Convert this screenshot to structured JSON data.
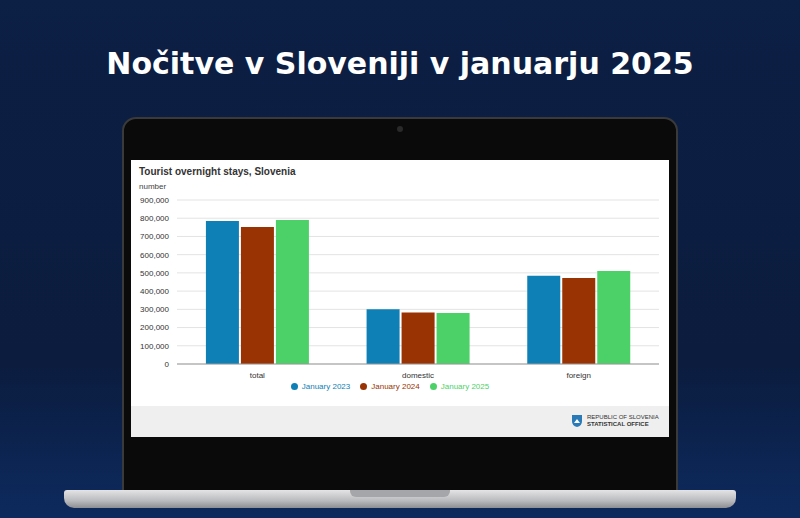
{
  "heading": "Nočitve v Sloveniji v januarju 2025",
  "chart_data": {
    "type": "bar",
    "title": "Tourist overnight stays, Slovenia",
    "ylabel": "number",
    "categories": [
      "total",
      "domestic",
      "foreign"
    ],
    "series": [
      {
        "name": "January 2023",
        "color": "#0e80b5",
        "values": [
          785000,
          300000,
          484000
        ]
      },
      {
        "name": "January 2024",
        "color": "#9a3303",
        "values": [
          752000,
          282000,
          472000
        ]
      },
      {
        "name": "January 2025",
        "color": "#4cd168",
        "values": [
          790000,
          280000,
          510000
        ]
      }
    ],
    "ylim": [
      0,
      900000
    ],
    "yticks": [
      0,
      {
        "value": 100000,
        "label": "100,000"
      },
      {
        "value": 200000,
        "label": "200,000"
      },
      {
        "value": 300000,
        "label": "300,000"
      },
      {
        "value": 400000,
        "label": "400,000"
      },
      {
        "value": 500000,
        "label": "500,000"
      },
      {
        "value": 600000,
        "label": "600,000"
      },
      {
        "value": 700000,
        "label": "700,000"
      },
      {
        "value": 800000,
        "label": "800,000"
      },
      {
        "value": 900000,
        "label": "900,000"
      }
    ],
    "grid": true,
    "legend": "bottom",
    "annotations": [
      "REPUBLIC OF SLOVENIA",
      "STATISTICAL OFFICE"
    ]
  }
}
